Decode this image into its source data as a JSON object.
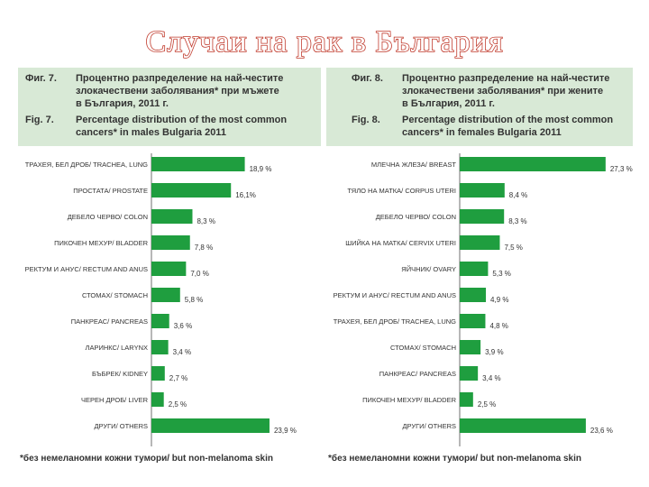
{
  "page_title": "Случаи на рак в България",
  "figures": [
    {
      "id": "male",
      "fig_bg": "Фиг. 7.",
      "caption_bg": [
        "Процентно разпределение на най-честите",
        "злокачествени заболявания* при мъжете",
        "в България, 2011 г."
      ],
      "fig_en": "Fig. 7.",
      "caption_en": [
        "Percentage distribution of the most common",
        "cancers* in males Bulgaria 2011"
      ],
      "footnote": "*без немеланомни кожни тумори/ but non-melanoma skin"
    },
    {
      "id": "female",
      "fig_bg": "Фиг. 8.",
      "caption_bg": [
        "Процентно разпределение на най-честите",
        "злокачествени заболявания* при жените",
        "в България, 2011 г."
      ],
      "fig_en": "Fig. 8.",
      "caption_en": [
        "Percentage distribution of the most common",
        "cancers* in females Bulgaria 2011"
      ],
      "footnote": "*без немеланомни кожни тумори/ but non-melanoma skin"
    }
  ],
  "colors": {
    "bar": "#1f9e3f",
    "caption_bg": "#d8e9d6",
    "title": "#c0392b"
  },
  "chart_data": [
    {
      "type": "bar",
      "orientation": "horizontal",
      "categories": [
        "ТРАХЕЯ, БЕЛ ДРОБ/ TRACHEA, LUNG",
        "ПРОСТАТА/ PROSTATE",
        "ДЕБЕЛО ЧЕРВО/ COLON",
        "ПИКОЧЕН МЕХУР/ BLADDER",
        "РЕКТУМ И АНУС/ RECTUM AND ANUS",
        "СТОМАХ/ STOMACH",
        "ПАНКРЕАС/ PANCREAS",
        "ЛАРИНКС/ LARYNX",
        "БЪБРЕК/ KIDNEY",
        "ЧЕРЕН ДРОБ/ LIVER",
        "ДРУГИ/ OTHERS"
      ],
      "values": [
        18.9,
        16.1,
        8.3,
        7.8,
        7.0,
        5.8,
        3.6,
        3.4,
        2.7,
        2.5,
        23.9
      ],
      "value_labels": [
        "18,9 %",
        "16,1%",
        "8,3 %",
        "7,8 %",
        "7,0 %",
        "5,8 %",
        "3,6 %",
        "3,4 %",
        "2,7 %",
        "2,5 %",
        "23,9 %"
      ],
      "xlim": [
        0,
        25
      ]
    },
    {
      "type": "bar",
      "orientation": "horizontal",
      "categories": [
        "МЛЕЧНА ЖЛЕЗА/ BREAST",
        "ТЯЛО НА МАТКА/ CORPUS UTERI",
        "ДЕБЕЛО ЧЕРВО/ COLON",
        "ШИЙКА НА МАТКА/ CERVIX UTERI",
        "ЯЙЧНИК/ OVARY",
        "РЕКТУМ И АНУС/ RECTUM AND ANUS",
        "ТРАХЕЯ, БЕЛ ДРОБ/ TRACHEA, LUNG",
        "СТОМАХ/ STOMACH",
        "ПАНКРЕАС/ PANCREAS",
        "ПИКОЧЕН МЕХУР/ BLADDER",
        "ДРУГИ/ OTHERS"
      ],
      "values": [
        27.3,
        8.4,
        8.3,
        7.5,
        5.3,
        4.9,
        4.8,
        3.9,
        3.4,
        2.5,
        23.6
      ],
      "value_labels": [
        "27,3 %",
        "8,4 %",
        "8,3 %",
        "7,5 %",
        "5,3 %",
        "4,9 %",
        "4,8 %",
        "3,9 %",
        "3,4 %",
        "2,5 %",
        "23,6 %"
      ],
      "xlim": [
        0,
        28
      ]
    }
  ]
}
